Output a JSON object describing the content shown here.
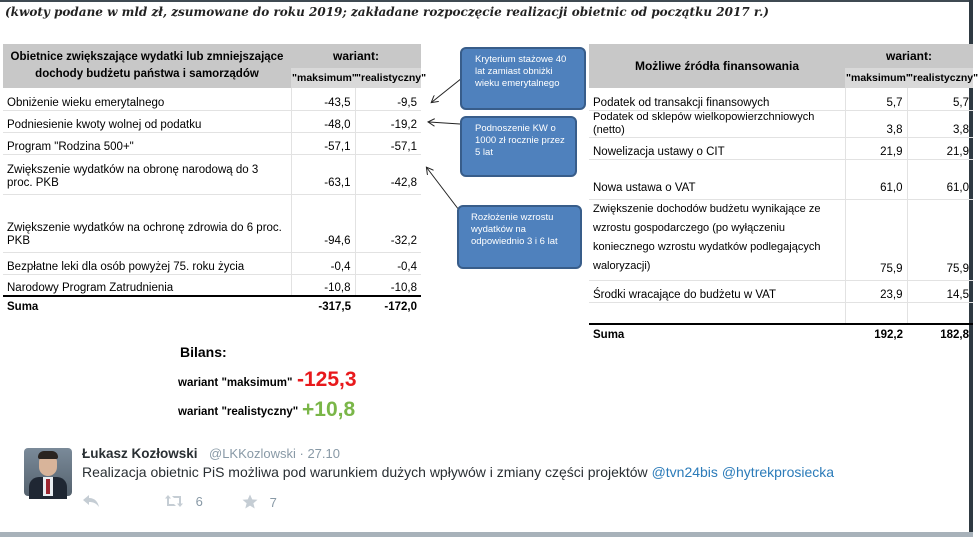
{
  "caption": "(kwoty podane w mld zł, zsumowane do roku 2019; zakładane rozpoczęcie realizacji obietnic od początku 2017 r.)",
  "left_table": {
    "header": "Obietnice zwiększające wydatki lub zmniejszające dochody budżetu państwa i samorządów",
    "variant_label": "wariant:",
    "col_max": "\"maksimum\"",
    "col_real": "\"realistyczny\"",
    "rows": [
      {
        "label": "Obniżenie wieku emerytalnego",
        "max": "-43,5",
        "real": "-9,5"
      },
      {
        "label": "Podniesienie kwoty wolnej od podatku",
        "max": "-48,0",
        "real": "-19,2"
      },
      {
        "label": "Program \"Rodzina 500+\"",
        "max": "-57,1",
        "real": "-57,1"
      },
      {
        "label": "Zwiększenie wydatków na obronę narodową do 3 proc. PKB",
        "max": "-63,1",
        "real": "-42,8"
      },
      {
        "label": "Zwiększenie wydatków na ochronę zdrowia do 6 proc. PKB",
        "max": "-94,6",
        "real": "-32,2"
      },
      {
        "label": "Bezpłatne leki dla osób powyżej 75. roku życia",
        "max": "-0,4",
        "real": "-0,4"
      },
      {
        "label": "Narodowy Program Zatrudnienia",
        "max": "-10,8",
        "real": "-10,8"
      }
    ],
    "sum": {
      "label": "Suma",
      "max": "-317,5",
      "real": "-172,0"
    }
  },
  "right_table": {
    "header": "Możliwe źródła finansowania",
    "variant_label": "wariant:",
    "col_max": "\"maksimum\"",
    "col_real": "\"realistyczny\"",
    "rows": [
      {
        "label": "Podatek od transakcji finansowych",
        "max": "5,7",
        "real": "5,7"
      },
      {
        "label": "Podatek od sklepów wielkopowierzchniowych (netto)",
        "max": "3,8",
        "real": "3,8"
      },
      {
        "label": "Nowelizacja ustawy o CIT",
        "max": "21,9",
        "real": "21,9"
      },
      {
        "label": "Nowa ustawa o VAT",
        "max": "61,0",
        "real": "61,0"
      },
      {
        "label": "Zwiększenie dochodów budżetu wynikające ze wzrostu gospodarczego (po wyłączeniu koniecznego wzrostu wydatków podlegających waloryzacji)",
        "max": "75,9",
        "real": "75,9"
      },
      {
        "label": "Środki wracające do budżetu w VAT",
        "max": "23,9",
        "real": "14,5"
      },
      {
        "label": "",
        "max": "",
        "real": ""
      }
    ],
    "sum": {
      "label": "Suma",
      "max": "192,2",
      "real": "182,8"
    }
  },
  "callouts": [
    {
      "text": "Kryterium stażowe 40 lat zamiast obniżki wieku emerytalnego"
    },
    {
      "text": "Podnoszenie KW o 1000 zł rocznie przez 5 lat"
    },
    {
      "text": "Rozłożenie wzrostu wydatków na odpowiednio 3 i 6 lat"
    }
  ],
  "balance": {
    "title": "Bilans:",
    "max_label": "wariant \"maksimum\"",
    "max_value": "-125,3",
    "real_label": "wariant \"realistyczny\"",
    "real_value": "+10,8",
    "max_color": "#e8191c",
    "real_color": "#7ab648"
  },
  "tweet": {
    "name": "Łukasz Kozłowski",
    "handle": "@LKKozlowski · 27.10",
    "text": "Realizacja obietnic PiS możliwa pod warunkiem dużych wpływów i zmiany części projektów",
    "mention1": "@tvn24bis",
    "mention2": "@hytrekprosiecka",
    "retweet_count": "6",
    "favorite_count": "7",
    "icons": {
      "reply": "reply-icon",
      "retweet": "retweet-icon",
      "favorite": "star-icon"
    }
  }
}
